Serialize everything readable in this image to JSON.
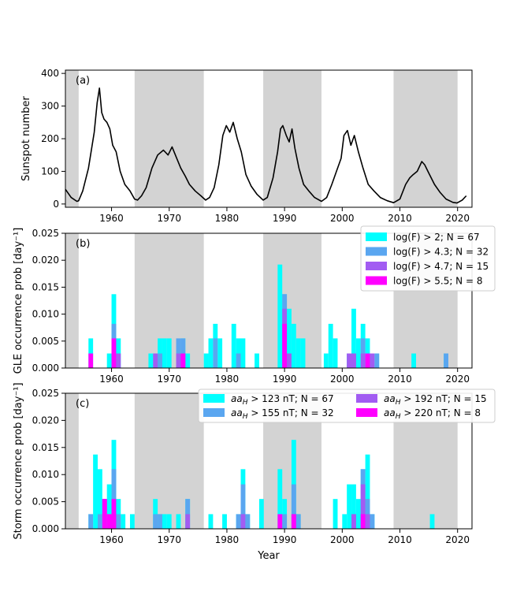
{
  "chart_data": [
    {
      "id": "a",
      "type": "line",
      "panel_label": "(a)",
      "ylabel": "Sunspot number",
      "xlabel": "",
      "xlim": [
        1952,
        2022.5
      ],
      "ylim": [
        -10,
        410
      ],
      "xticks": [
        1960,
        1970,
        1980,
        1990,
        2000,
        2010,
        2020
      ],
      "yticks": [
        0,
        100,
        200,
        300,
        400
      ],
      "shaded_intervals": [
        [
          1952,
          1954.3
        ],
        [
          1964,
          1976
        ],
        [
          1986.3,
          1996.4
        ],
        [
          2008.9,
          2020
        ]
      ],
      "series": [
        {
          "name": "Sunspot number",
          "x": [
            1952,
            1953,
            1954,
            1954.3,
            1955,
            1956,
            1957,
            1957.5,
            1957.9,
            1958.3,
            1958.7,
            1959.2,
            1959.7,
            1960.2,
            1960.8,
            1961.5,
            1962.3,
            1963.2,
            1964.0,
            1964.5,
            1965.2,
            1966,
            1967,
            1968,
            1969,
            1969.8,
            1970.5,
            1971.3,
            1972,
            1972.8,
            1973.5,
            1974.5,
            1975.5,
            1976.3,
            1977,
            1977.8,
            1978.6,
            1979.3,
            1979.9,
            1980.5,
            1981.1,
            1981.8,
            1982.5,
            1983.3,
            1984.2,
            1985.2,
            1986.3,
            1987,
            1988,
            1988.8,
            1989.3,
            1989.7,
            1990.3,
            1990.8,
            1991.3,
            1991.8,
            1992.5,
            1993.3,
            1994.2,
            1995.2,
            1996.4,
            1997.3,
            1998.2,
            1999.0,
            1999.8,
            2000.3,
            2000.9,
            2001.5,
            2002.1,
            2002.8,
            2003.6,
            2004.5,
            2005.5,
            2006.6,
            2007.8,
            2008.9,
            2010,
            2011,
            2011.7,
            2012.3,
            2013,
            2013.8,
            2014.3,
            2015,
            2016,
            2017,
            2018,
            2019.2,
            2019.9,
            2020.8,
            2021.5
          ],
          "y": [
            45,
            20,
            8,
            10,
            40,
            110,
            220,
            310,
            355,
            280,
            260,
            250,
            230,
            180,
            160,
            100,
            60,
            40,
            15,
            12,
            25,
            50,
            110,
            150,
            165,
            150,
            175,
            140,
            110,
            85,
            60,
            40,
            25,
            12,
            20,
            50,
            120,
            210,
            240,
            220,
            250,
            200,
            160,
            90,
            55,
            30,
            12,
            20,
            80,
            160,
            230,
            240,
            210,
            190,
            230,
            170,
            110,
            60,
            40,
            20,
            8,
            20,
            60,
            100,
            140,
            210,
            225,
            180,
            210,
            160,
            110,
            60,
            40,
            20,
            10,
            4,
            15,
            60,
            80,
            90,
            100,
            130,
            120,
            95,
            60,
            35,
            15,
            5,
            3,
            12,
            25
          ]
        }
      ]
    },
    {
      "id": "b",
      "type": "bar",
      "panel_label": "(b)",
      "ylabel": "GLE occurrence prob [day⁻¹]",
      "xlabel": "",
      "xlim": [
        1952,
        2022.5
      ],
      "ylim": [
        0,
        0.025
      ],
      "xticks": [
        1960,
        1970,
        1980,
        1990,
        2000,
        2010,
        2020
      ],
      "yticks": [
        0.0,
        0.005,
        0.01,
        0.015,
        0.02,
        0.025
      ],
      "ytick_labels": [
        "0.000",
        "0.005",
        "0.010",
        "0.015",
        "0.020",
        "0.025"
      ],
      "shaded_intervals": [
        [
          1952,
          1954.3
        ],
        [
          1964,
          1976
        ],
        [
          1986.3,
          1996.4
        ],
        [
          2008.9,
          2020
        ]
      ],
      "bin_width": 0.8,
      "series": [
        {
          "name": "log(F) > 2; N = 67",
          "color": "#00ffff",
          "x": [
            1956,
            1959.2,
            1960,
            1960.8,
            1966.4,
            1967.2,
            1968.0,
            1968.8,
            1969.6,
            1971.2,
            1972.0,
            1972.8,
            1976.0,
            1976.8,
            1977.6,
            1978.4,
            1980.8,
            1981.6,
            1982.4,
            1984.8,
            1988.8,
            1989.6,
            1990.4,
            1991.2,
            1992.0,
            1992.8,
            1996.8,
            1997.6,
            1998.4,
            2000.8,
            2001.6,
            2002.4,
            2003.2,
            2004.0,
            2005.6,
            2012.0,
            2017.6
          ],
          "values": [
            0.0055,
            0.0027,
            0.0137,
            0.0055,
            0.0027,
            0.0027,
            0.0055,
            0.0055,
            0.0055,
            0.0027,
            0.0055,
            0.0027,
            0.0027,
            0.0055,
            0.0082,
            0.0055,
            0.0082,
            0.0055,
            0.0055,
            0.0027,
            0.0192,
            0.0137,
            0.011,
            0.0082,
            0.0055,
            0.0055,
            0.0027,
            0.0082,
            0.0055,
            0.0027,
            0.011,
            0.0055,
            0.0082,
            0.0055,
            0.0027,
            0.0027,
            0.0027
          ]
        },
        {
          "name": "log(F) > 4.3; N = 32",
          "color": "#5aa6f0",
          "x": [
            1960,
            1968.0,
            1971.2,
            1972.0,
            1977.6,
            1981.6,
            1989.6,
            2000.8,
            2001.6,
            2003.2,
            2005.6,
            2017.6
          ],
          "values": [
            0.0082,
            0.0027,
            0.0055,
            0.0055,
            0.0055,
            0.0027,
            0.0137,
            0.0027,
            0.0027,
            0.0055,
            0.0027,
            0.0027
          ]
        },
        {
          "name": "log(F) > 4.7; N = 15",
          "color": "#a25cf2",
          "x": [
            1960.8,
            1967.2,
            1971.2,
            1972.0,
            1989.6,
            1990.4,
            2000.8,
            2001.6,
            2003.2,
            2004.8
          ],
          "values": [
            0.0027,
            0.0027,
            0.0027,
            0.0027,
            0.011,
            0.0027,
            0.0027,
            0.0027,
            0.0027,
            0.0027
          ]
        },
        {
          "name": "log(F) > 5.5; N = 8",
          "color": "#ff00ff",
          "x": [
            1956,
            1960,
            1972.0,
            1989.6,
            2004.0
          ],
          "values": [
            0.0027,
            0.0055,
            0.0027,
            0.0082,
            0.0027
          ]
        }
      ]
    },
    {
      "id": "c",
      "type": "bar",
      "panel_label": "(c)",
      "ylabel": "Storm occurrence prob [day⁻¹]",
      "xlabel": "Year",
      "xlim": [
        1952,
        2022.5
      ],
      "ylim": [
        0,
        0.025
      ],
      "xticks": [
        1960,
        1970,
        1980,
        1990,
        2000,
        2010,
        2020
      ],
      "yticks": [
        0.0,
        0.005,
        0.01,
        0.015,
        0.02,
        0.025
      ],
      "ytick_labels": [
        "0.000",
        "0.005",
        "0.010",
        "0.015",
        "0.020",
        "0.025"
      ],
      "shaded_intervals": [
        [
          1952,
          1954.3
        ],
        [
          1964,
          1976
        ],
        [
          1986.3,
          1996.4
        ],
        [
          2008.9,
          2020
        ]
      ],
      "bin_width": 0.8,
      "series": [
        {
          "name": "aa_H > 123 nT; N = 67",
          "color": "#00ffff",
          "x": [
            1956.0,
            1956.8,
            1957.6,
            1958.4,
            1959.2,
            1960.0,
            1960.8,
            1961.6,
            1963.2,
            1967.2,
            1968.0,
            1968.8,
            1969.6,
            1971.2,
            1972.8,
            1976.8,
            1979.2,
            1981.6,
            1982.4,
            1983.2,
            1985.6,
            1988.8,
            1989.6,
            1991.2,
            1992.0,
            1998.4,
            2000.0,
            2000.8,
            2001.6,
            2002.4,
            2003.2,
            2004.0,
            2004.8,
            2015.2
          ],
          "values": [
            0.0027,
            0.0137,
            0.011,
            0.0055,
            0.0082,
            0.0164,
            0.0055,
            0.0027,
            0.0027,
            0.0055,
            0.0027,
            0.0027,
            0.0027,
            0.0027,
            0.0055,
            0.0027,
            0.0027,
            0.0027,
            0.011,
            0.0027,
            0.0055,
            0.011,
            0.0055,
            0.0164,
            0.0027,
            0.0055,
            0.0027,
            0.0082,
            0.0082,
            0.0055,
            0.011,
            0.0137,
            0.0027,
            0.0027
          ]
        },
        {
          "name": "aa_H > 155 nT; N = 32",
          "color": "#5aa6f0",
          "x": [
            1956.0,
            1957.6,
            1958.4,
            1959.2,
            1960.0,
            1960.8,
            1967.2,
            1968.0,
            1972.8,
            1981.6,
            1982.4,
            1983.2,
            1989.6,
            1991.2,
            1992.0,
            2001.6,
            2003.2,
            2004.0,
            2004.8
          ],
          "values": [
            0.0027,
            0.0027,
            0.0055,
            0.0027,
            0.011,
            0.0027,
            0.0027,
            0.0027,
            0.0055,
            0.0027,
            0.0082,
            0.0027,
            0.0027,
            0.0082,
            0.0027,
            0.0027,
            0.011,
            0.0055,
            0.0027
          ]
        },
        {
          "name": "aa_H > 192 nT; N = 15",
          "color": "#a25cf2",
          "x": [
            1958.4,
            1960.0,
            1972.8,
            1982.4,
            1991.2,
            2001.6,
            2003.2,
            2004.0
          ],
          "values": [
            0.0055,
            0.0055,
            0.0027,
            0.0027,
            0.0027,
            0.0027,
            0.0082,
            0.0027
          ]
        },
        {
          "name": "aa_H > 220 nT; N = 8",
          "color": "#ff00ff",
          "x": [
            1958.4,
            1959.2,
            1960.0,
            1988.8,
            1991.2,
            2003.2
          ],
          "values": [
            0.0055,
            0.0027,
            0.0055,
            0.0027,
            0.0027,
            0.0027
          ]
        }
      ]
    }
  ],
  "legend_b": {
    "items": [
      {
        "label": "log(F) > 2; N = 67",
        "color": "#00ffff"
      },
      {
        "label": "log(F) > 4.3; N = 32",
        "color": "#5aa6f0"
      },
      {
        "label": "log(F) > 4.7; N = 15",
        "color": "#a25cf2"
      },
      {
        "label": "log(F) > 5.5; N = 8",
        "color": "#ff00ff"
      }
    ]
  },
  "legend_c": {
    "items": [
      {
        "sym": "aa",
        "sub": "H",
        "rest": " > 123 nT; N = 67",
        "color": "#00ffff"
      },
      {
        "sym": "aa",
        "sub": "H",
        "rest": " > 192 nT; N = 15",
        "color": "#a25cf2"
      },
      {
        "sym": "aa",
        "sub": "H",
        "rest": " > 155 nT; N = 32",
        "color": "#5aa6f0"
      },
      {
        "sym": "aa",
        "sub": "H",
        "rest": " > 220 nT; N = 8",
        "color": "#ff00ff"
      }
    ]
  }
}
